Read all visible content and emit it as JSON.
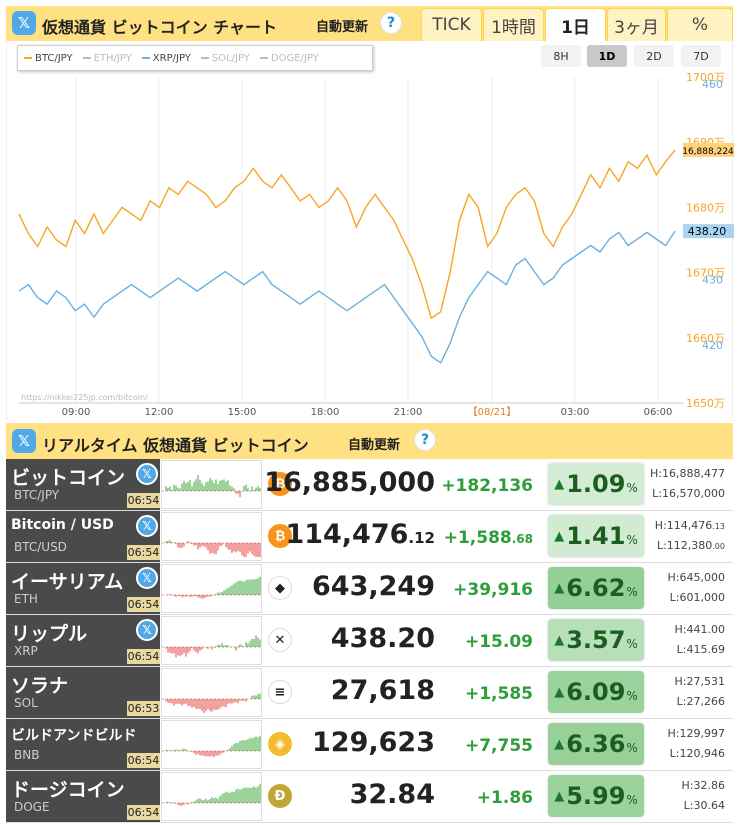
{
  "header": {
    "x_icon": "𝕏",
    "title": "仮想通貨 ビットコイン チャート",
    "auto_update": "自動更新",
    "help": "?",
    "range_tabs": [
      "TICK",
      "1時間",
      "1日",
      "3ヶ月",
      "%"
    ],
    "active_range": "1日"
  },
  "chart": {
    "legend": [
      {
        "label": "BTC/JPY",
        "color": "#f5a623",
        "enabled": true
      },
      {
        "label": "ETH/JPY",
        "color": "#bbbbbb",
        "enabled": false
      },
      {
        "label": "XRP/JPY",
        "color": "#6ab0e0",
        "enabled": true
      },
      {
        "label": "SOL/JPY",
        "color": "#bbbbbb",
        "enabled": false
      },
      {
        "label": "DOGE/JPY",
        "color": "#bbbbbb",
        "enabled": false
      }
    ],
    "zoom_buttons": [
      "8H",
      "1D",
      "2D",
      "7D"
    ],
    "active_zoom": "1D",
    "watermark": "https://nikkei225jp.com/bitcoin/",
    "btc_current_label": "16,888,224",
    "xrp_current_label": "438.20"
  },
  "chart_data": {
    "type": "line",
    "x_labels": [
      "09:00",
      "12:00",
      "15:00",
      "18:00",
      "21:00",
      "【08/21】",
      "03:00",
      "06:00"
    ],
    "btc_axis": {
      "ticks": [
        "1700万",
        "1690万",
        "1680万",
        "1670万",
        "1660万",
        "1650万"
      ],
      "range": [
        16500000,
        17000000
      ]
    },
    "xrp_axis": {
      "ticks": [
        "460",
        "430",
        "420"
      ],
      "range": [
        410,
        460
      ]
    },
    "series": [
      {
        "name": "BTC/JPY",
        "color": "#f5a623",
        "values": [
          16790000,
          16760000,
          16740000,
          16770000,
          16750000,
          16740000,
          16780000,
          16760000,
          16790000,
          16760000,
          16780000,
          16800000,
          16790000,
          16780000,
          16810000,
          16800000,
          16830000,
          16820000,
          16840000,
          16830000,
          16820000,
          16800000,
          16810000,
          16830000,
          16840000,
          16860000,
          16840000,
          16830000,
          16850000,
          16830000,
          16810000,
          16820000,
          16800000,
          16810000,
          16830000,
          16810000,
          16770000,
          16800000,
          16820000,
          16800000,
          16780000,
          16750000,
          16720000,
          16680000,
          16630000,
          16640000,
          16700000,
          16780000,
          16820000,
          16800000,
          16740000,
          16760000,
          16800000,
          16820000,
          16830000,
          16810000,
          16760000,
          16740000,
          16770000,
          16790000,
          16820000,
          16850000,
          16830000,
          16860000,
          16840000,
          16870000,
          16860000,
          16880000,
          16850000,
          16870000,
          16888224
        ]
      },
      {
        "name": "XRP/JPY",
        "color": "#6ab0e0",
        "values": [
          429,
          430,
          428,
          427,
          429,
          428,
          426,
          427,
          425,
          427,
          428,
          429,
          430,
          429,
          428,
          429,
          430,
          431,
          430,
          429,
          430,
          431,
          432,
          431,
          430,
          431,
          432,
          430,
          429,
          428,
          427,
          428,
          429,
          428,
          427,
          426,
          427,
          428,
          429,
          430,
          428,
          426,
          424,
          422,
          419,
          418,
          421,
          425,
          428,
          430,
          432,
          431,
          430,
          433,
          434,
          432,
          430,
          431,
          433,
          434,
          435,
          436,
          435,
          437,
          438,
          436,
          437,
          438,
          437,
          436,
          438.2
        ]
      }
    ]
  },
  "realtime": {
    "title": "リアルタイム 仮想通貨 ビットコイン",
    "auto_update": "自動更新",
    "rows": [
      {
        "name": "ビットコイン",
        "pair": "BTC/JPY",
        "time": "06:54",
        "icon": "btc",
        "icon_color": "#f7931a",
        "icon_glyph": "₿",
        "price": "16,885,000",
        "price_frac": "",
        "change": "+182,136",
        "change_frac": "",
        "pct": "1.09",
        "pct_strength": 0.2,
        "high": "H:16,888,477",
        "high_frac": "",
        "low": "L:16,570,000",
        "low_frac": "",
        "has_x": true
      },
      {
        "name": "Bitcoin / USD",
        "pair": "BTC/USD",
        "time": "06:54",
        "icon": "btc",
        "icon_color": "#f7931a",
        "icon_glyph": "₿",
        "price": "114,476",
        "price_frac": ".12",
        "change": "+1,588",
        "change_frac": ".68",
        "pct": "1.41",
        "pct_strength": 0.25,
        "high": "H:114,476",
        "high_frac": ".13",
        "low": "L:112,380",
        "low_frac": ".00",
        "has_x": true
      },
      {
        "name": "イーサリアム",
        "pair": "ETH",
        "time": "06:54",
        "icon": "eth",
        "icon_color": "#ffffff",
        "icon_glyph": "◆",
        "price": "643,249",
        "price_frac": "",
        "change": "+39,916",
        "change_frac": "",
        "pct": "6.62",
        "pct_strength": 1.0,
        "high": "H:645,000",
        "high_frac": "",
        "low": "L:601,000",
        "low_frac": "",
        "has_x": true
      },
      {
        "name": "リップル",
        "pair": "XRP",
        "time": "06:54",
        "icon": "xrp",
        "icon_color": "#ffffff",
        "icon_glyph": "✕",
        "price": "438.20",
        "price_frac": "",
        "change": "+15.09",
        "change_frac": "",
        "pct": "3.57",
        "pct_strength": 0.55,
        "high": "H:441.00",
        "high_frac": "",
        "low": "L:415.69",
        "low_frac": "",
        "has_x": true
      },
      {
        "name": "ソラナ",
        "pair": "SOL",
        "time": "06:53",
        "icon": "sol",
        "icon_color": "#ffffff",
        "icon_glyph": "≡",
        "price": "27,618",
        "price_frac": "",
        "change": "+1,585",
        "change_frac": "",
        "pct": "6.09",
        "pct_strength": 0.92,
        "high": "H:27,531",
        "high_frac": "",
        "low": "L:27,266",
        "low_frac": "",
        "has_x": false
      },
      {
        "name": "ビルドアンドビルド",
        "pair": "BNB",
        "time": "06:54",
        "icon": "bnb",
        "icon_color": "#f3ba2f",
        "icon_glyph": "◈",
        "price": "129,623",
        "price_frac": "",
        "change": "+7,755",
        "change_frac": "",
        "pct": "6.36",
        "pct_strength": 0.96,
        "high": "H:129,997",
        "high_frac": "",
        "low": "L:120,946",
        "low_frac": "",
        "has_x": false
      },
      {
        "name": "ドージコイン",
        "pair": "DOGE",
        "time": "06:54",
        "icon": "doge",
        "icon_color": "#c2a633",
        "icon_glyph": "Ð",
        "price": "32.84",
        "price_frac": "",
        "change": "+1.86",
        "change_frac": "",
        "pct": "5.99",
        "pct_strength": 0.9,
        "high": "H:32.86",
        "high_frac": "",
        "low": "L:30.64",
        "low_frac": "",
        "has_x": false
      }
    ]
  }
}
